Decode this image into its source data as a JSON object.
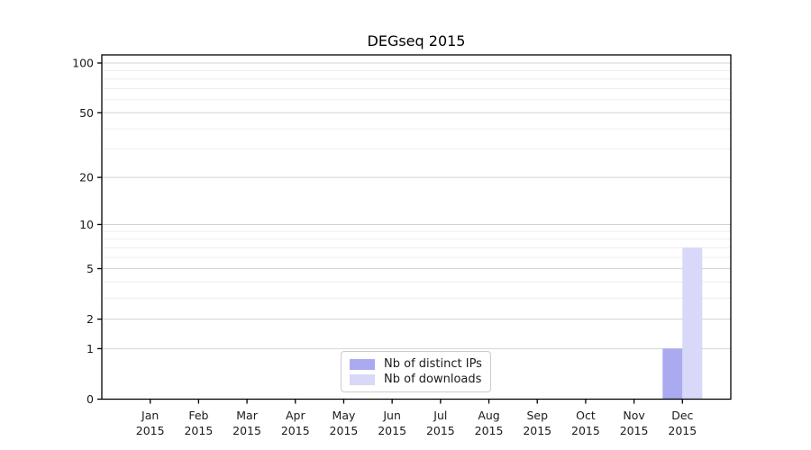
{
  "chart_data": {
    "type": "bar",
    "title": "DEGseq 2015",
    "categories": [
      "Jan",
      "Feb",
      "Mar",
      "Apr",
      "May",
      "Jun",
      "Jul",
      "Aug",
      "Sep",
      "Oct",
      "Nov",
      "Dec"
    ],
    "category_year": "2015",
    "series": [
      {
        "name": "Nb of distinct IPs",
        "color": "#aaaaf0",
        "values": [
          0,
          0,
          0,
          0,
          0,
          0,
          0,
          0,
          0,
          0,
          0,
          1
        ]
      },
      {
        "name": "Nb of downloads",
        "color": "#d8d8f8",
        "values": [
          0,
          0,
          0,
          0,
          0,
          0,
          0,
          0,
          0,
          0,
          0,
          7
        ]
      }
    ],
    "y_scale": "log1p",
    "ylim": [
      0,
      100
    ],
    "y_ticks": [
      0,
      1,
      2,
      5,
      10,
      20,
      50,
      100
    ],
    "y_minor_ticks": [
      3,
      4,
      6,
      7,
      8,
      9,
      30,
      40,
      60,
      70,
      80,
      90
    ],
    "xlabel": "",
    "ylabel": "",
    "grid": "horizontal",
    "legend_position": "bottom-center",
    "colors": {
      "axis": "#000000",
      "text": "#1a1a1a",
      "major_grid": "#d2d2d2",
      "minor_grid": "#eeeeee",
      "background": "#ffffff"
    }
  }
}
